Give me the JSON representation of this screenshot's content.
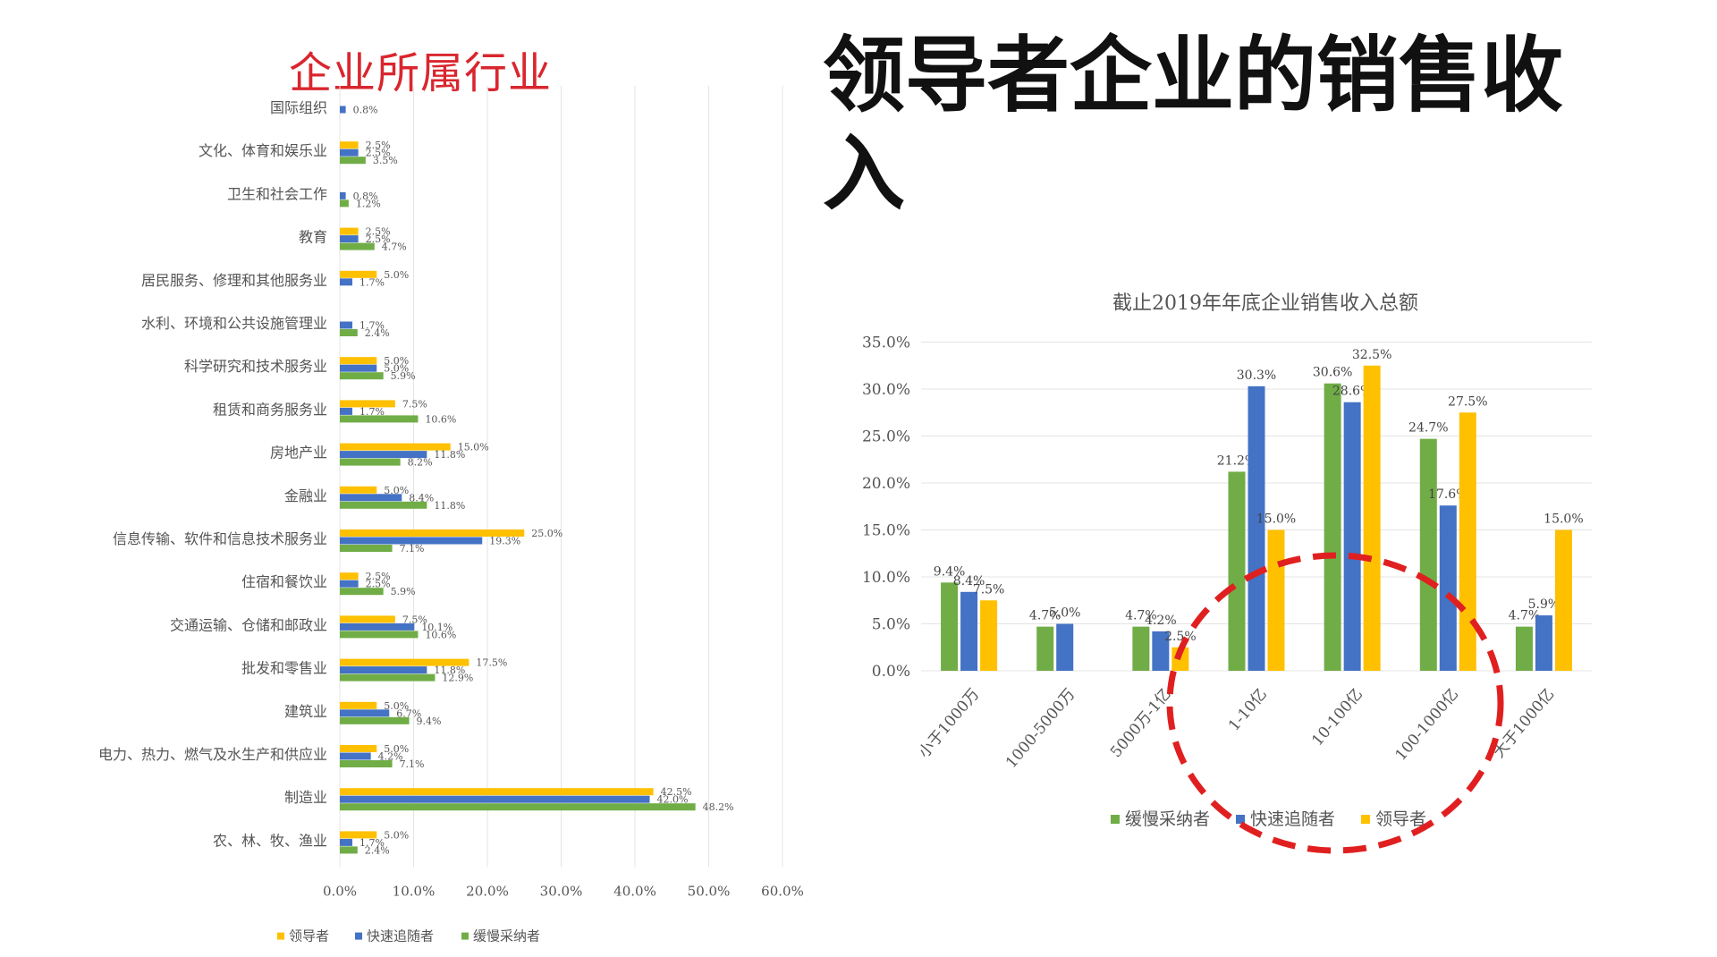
{
  "left_title": "企业所属行业",
  "main_title": "领导者企业的销售收入",
  "colors": {
    "leader": "#FFC000",
    "fast": "#4472C4",
    "slow": "#70AD47",
    "highlight": "#E02020",
    "title_red": "#d9262e"
  },
  "chart_data": [
    {
      "type": "bar",
      "orientation": "horizontal",
      "title": "",
      "categories": [
        "国际组织",
        "文化、体育和娱乐业",
        "卫生和社会工作",
        "教育",
        "居民服务、修理和其他服务业",
        "水利、环境和公共设施管理业",
        "科学研究和技术服务业",
        "租赁和商务服务业",
        "房地产业",
        "金融业",
        "信息传输、软件和信息技术服务业",
        "住宿和餐饮业",
        "交通运输、仓储和邮政业",
        "批发和零售业",
        "建筑业",
        "电力、热力、燃气及水生产和供应业",
        "制造业",
        "农、林、牧、渔业"
      ],
      "series": [
        {
          "name": "领导者",
          "color": "#FFC000",
          "values": [
            null,
            2.5,
            null,
            2.5,
            5.0,
            null,
            5.0,
            7.5,
            15.0,
            5.0,
            25.0,
            2.5,
            7.5,
            17.5,
            5.0,
            5.0,
            42.5,
            5.0
          ]
        },
        {
          "name": "快速追随者",
          "color": "#4472C4",
          "values": [
            0.8,
            2.5,
            0.8,
            2.5,
            1.7,
            1.7,
            5.0,
            1.7,
            11.8,
            8.4,
            19.3,
            2.5,
            10.1,
            11.8,
            6.7,
            4.2,
            42.0,
            1.7
          ]
        },
        {
          "name": "缓慢采纳者",
          "color": "#70AD47",
          "values": [
            null,
            3.5,
            1.2,
            4.7,
            null,
            2.4,
            5.9,
            10.6,
            8.2,
            11.8,
            7.1,
            5.9,
            10.6,
            12.9,
            9.4,
            7.1,
            48.2,
            2.4
          ]
        }
      ],
      "data_labels": [
        [
          "",
          "0.8%",
          ""
        ],
        [
          "2.5%",
          "2.5%",
          "3.5%"
        ],
        [
          "",
          "0.8%",
          "1.2%"
        ],
        [
          "2.5%",
          "2.5%",
          "4.7%"
        ],
        [
          "5.0%",
          "1.7%",
          ""
        ],
        [
          "",
          "1.7%",
          "2.4%"
        ],
        [
          "5.0%",
          "5.0%",
          "5.9%"
        ],
        [
          "7.5%",
          "1.7%",
          "10.6%"
        ],
        [
          "15.0%",
          "11.8%",
          "8.2%"
        ],
        [
          "5.0%",
          "8.4%",
          "11.8%"
        ],
        [
          "25.0%",
          "19.3%",
          "7.1%"
        ],
        [
          "2.5%",
          "2.5%",
          "5.9%"
        ],
        [
          "7.5%",
          "10.1%",
          "10.6%"
        ],
        [
          "17.5%",
          "11.8%",
          "12.9%"
        ],
        [
          "5.0%",
          "6.7%",
          "9.4%"
        ],
        [
          "5.0%",
          "4.2%",
          "7.1%"
        ],
        [
          "42.5%",
          "42.0%",
          "48.2%"
        ],
        [
          "5.0%",
          "1.7%",
          "2.4%"
        ]
      ],
      "ticks": [
        "0.0%",
        "10.0%",
        "20.0%",
        "30.0%",
        "40.0%",
        "50.0%",
        "60.0%"
      ],
      "xlim": [
        0,
        60
      ],
      "grid": true,
      "legend": {
        "position": "bottom",
        "items": [
          "领导者",
          "快速追随者",
          "缓慢采纳者"
        ]
      }
    },
    {
      "type": "bar",
      "orientation": "vertical",
      "title": "截止2019年年底企业销售收入总额",
      "categories": [
        "小于1000万",
        "1000-5000万",
        "5000万-1亿",
        "1-10亿",
        "10-100亿",
        "100-1000亿",
        "大于1000亿"
      ],
      "series": [
        {
          "name": "缓慢采纳者",
          "color": "#70AD47",
          "values": [
            9.4,
            4.7,
            4.7,
            21.2,
            30.6,
            24.7,
            4.7
          ]
        },
        {
          "name": "快速追随者",
          "color": "#4472C4",
          "values": [
            8.4,
            5.0,
            4.2,
            30.3,
            28.6,
            17.6,
            5.9
          ]
        },
        {
          "name": "领导者",
          "color": "#FFC000",
          "values": [
            7.5,
            null,
            2.5,
            15.0,
            32.5,
            27.5,
            15.0
          ]
        }
      ],
      "data_labels": [
        [
          "9.4%",
          "8.4%",
          "7.5%"
        ],
        [
          "4.7%",
          "5.0%",
          ""
        ],
        [
          "4.7%",
          "4.2%",
          "2.5%"
        ],
        [
          "21.2%",
          "30.3%",
          "15.0%"
        ],
        [
          "30.6%",
          "28.6%",
          "32.5%"
        ],
        [
          "24.7%",
          "17.6%",
          "27.5%"
        ],
        [
          "4.7%",
          "5.9%",
          "15.0%"
        ]
      ],
      "ticks": [
        "0.0%",
        "5.0%",
        "10.0%",
        "15.0%",
        "20.0%",
        "25.0%",
        "30.0%",
        "35.0%"
      ],
      "ylim": [
        0,
        35
      ],
      "grid": true,
      "legend": {
        "position": "bottom",
        "items": [
          "缓慢采纳者",
          "快速追随者",
          "领导者"
        ]
      },
      "annotation": "dashed red ellipse highlighting 1-10亿 to 100-1000亿"
    }
  ]
}
